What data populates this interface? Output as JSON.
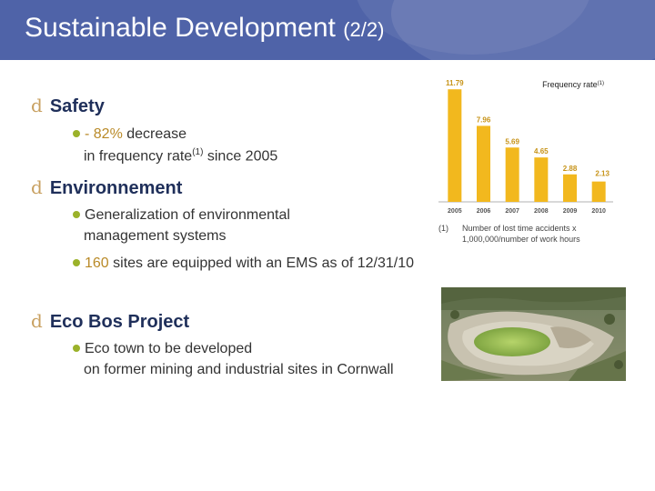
{
  "header": {
    "title": "Sustainable Development",
    "subtitle": "(2/2)"
  },
  "safety": {
    "heading": "Safety",
    "line1_prefix": "- 82%",
    "line1_rest": " decrease",
    "line2_prefix": "in frequency rate",
    "line2_sup": "(1)",
    "line2_rest": " since 2005"
  },
  "environment": {
    "heading": "Environnement",
    "item1_line1": "Generalization of environmental",
    "item1_line2": "management systems",
    "item2_value": "160",
    "item2_rest": " sites are equipped with an EMS as of 12/31/10"
  },
  "ecobos": {
    "heading": "Eco Bos Project",
    "line1": "Eco town to be developed",
    "line2": "on former mining and industrial sites in Cornwall"
  },
  "footnote": {
    "marker": "(1)",
    "line1": "Number of lost time accidents x",
    "line2": "1,000,000/number of work hours"
  },
  "chart_data": {
    "type": "bar",
    "title": "Frequency rate",
    "title_sup": "(1)",
    "categories": [
      "2005",
      "2006",
      "2007",
      "2008",
      "2009",
      "2010"
    ],
    "values": [
      11.79,
      7.96,
      5.69,
      4.65,
      2.88,
      2.13
    ],
    "value_labels": [
      "11.79",
      "7.96",
      "5.69",
      "4.65",
      "2.88",
      "2.13"
    ],
    "ylim": [
      0,
      12
    ],
    "grid": false,
    "bar_color": "#f2b81e",
    "label_color": "#c79318"
  }
}
